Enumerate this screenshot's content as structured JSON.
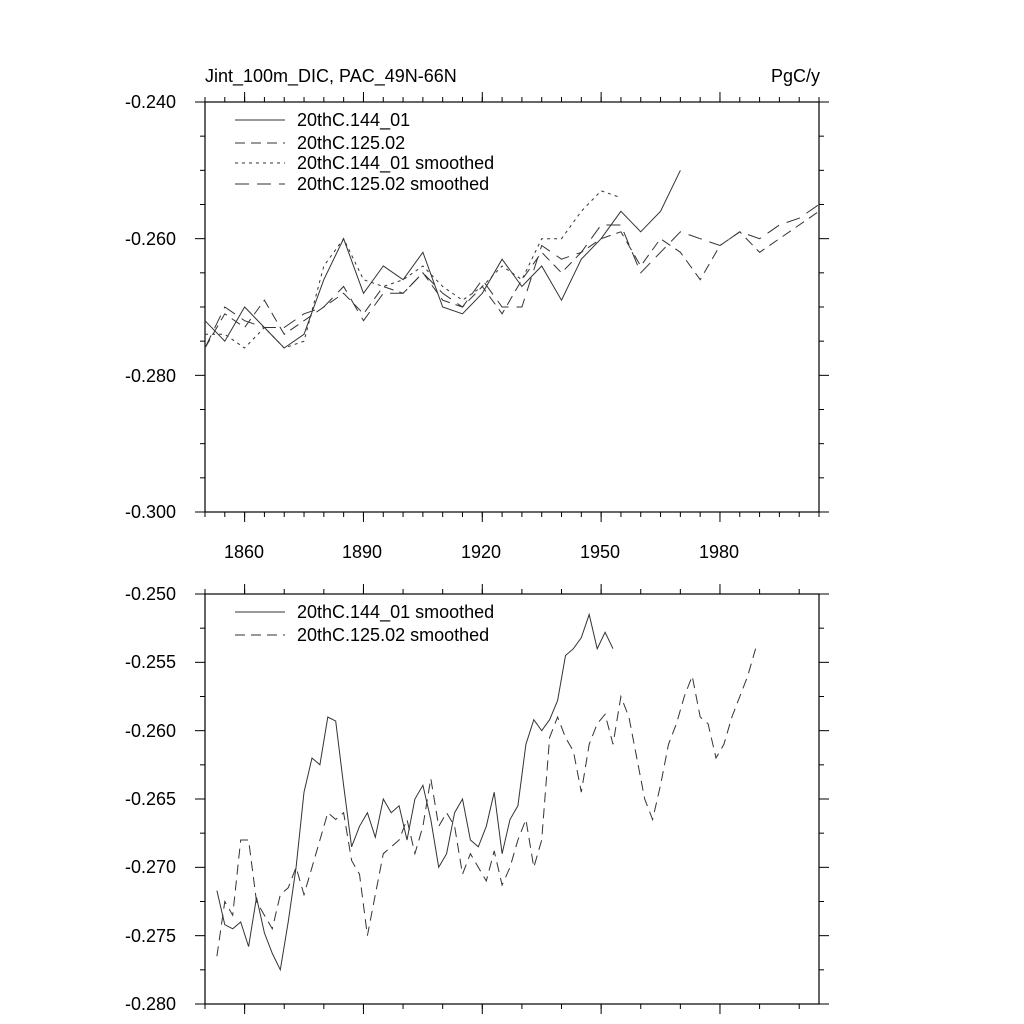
{
  "chart_data": [
    {
      "type": "line",
      "title": "Jint_100m_DIC, PAC_49N-66N",
      "units_label": "PgC/y",
      "ylim": [
        -0.3,
        -0.24
      ],
      "xlim": [
        1850,
        2005
      ],
      "yticks": [
        "-0.240",
        "-0.260",
        "-0.280",
        "-0.300"
      ],
      "xticks": [
        "1860",
        "1890",
        "1920",
        "1950",
        "1980"
      ],
      "series": [
        {
          "name": "20thC.144_01",
          "style": "solid",
          "color": "#333333",
          "x_start": 1850,
          "x_step": 5,
          "values": [
            -0.272,
            -0.275,
            -0.27,
            -0.273,
            -0.276,
            -0.274,
            -0.266,
            -0.26,
            -0.268,
            -0.264,
            -0.266,
            -0.262,
            -0.27,
            -0.271,
            -0.268,
            -0.263,
            -0.267,
            -0.264,
            -0.269,
            -0.263,
            -0.26,
            -0.256,
            -0.259,
            -0.256,
            -0.25
          ]
        },
        {
          "name": "20thC.125.02",
          "style": "dashed",
          "color": "#333333",
          "x_start": 1850,
          "x_step": 5,
          "values": [
            -0.276,
            -0.271,
            -0.273,
            -0.269,
            -0.274,
            -0.272,
            -0.27,
            -0.268,
            -0.271,
            -0.267,
            -0.268,
            -0.265,
            -0.269,
            -0.27,
            -0.267,
            -0.271,
            -0.266,
            -0.262,
            -0.265,
            -0.262,
            -0.26,
            -0.259,
            -0.264,
            -0.26,
            -0.262,
            -0.266,
            -0.261,
            -0.259,
            -0.262,
            -0.26,
            -0.258,
            -0.256
          ]
        },
        {
          "name": "20thC.144_01 smoothed",
          "style": "dotted",
          "color": "#333333",
          "x_start": 1850,
          "x_step": 5,
          "values": [
            -0.274,
            -0.274,
            -0.276,
            -0.273,
            -0.276,
            -0.275,
            -0.264,
            -0.26,
            -0.266,
            -0.267,
            -0.266,
            -0.264,
            -0.267,
            -0.269,
            -0.267,
            -0.264,
            -0.266,
            -0.26,
            -0.26,
            -0.256,
            -0.253,
            -0.254
          ]
        },
        {
          "name": "20thC.125.02 smoothed",
          "style": "longdash",
          "color": "#333333",
          "x_start": 1850,
          "x_step": 5,
          "values": [
            -0.276,
            -0.27,
            -0.272,
            -0.273,
            -0.273,
            -0.271,
            -0.27,
            -0.267,
            -0.272,
            -0.268,
            -0.268,
            -0.265,
            -0.268,
            -0.27,
            -0.266,
            -0.27,
            -0.27,
            -0.261,
            -0.263,
            -0.262,
            -0.258,
            -0.258,
            -0.265,
            -0.262,
            -0.259,
            -0.26,
            -0.261,
            -0.259,
            -0.26,
            -0.258,
            -0.257,
            -0.255
          ]
        }
      ]
    },
    {
      "type": "line",
      "ylim": [
        -0.28,
        -0.25
      ],
      "xlim": [
        1850,
        2005
      ],
      "yticks": [
        "-0.250",
        "-0.255",
        "-0.260",
        "-0.265",
        "-0.270",
        "-0.275",
        "-0.280"
      ],
      "xticks": [],
      "series": [
        {
          "name": "20thC.144_01 smoothed",
          "style": "solid",
          "color": "#333333",
          "x_start": 1853,
          "x_step": 2,
          "values": [
            -0.2717,
            -0.2742,
            -0.2745,
            -0.274,
            -0.2758,
            -0.2722,
            -0.2748,
            -0.2763,
            -0.2775,
            -0.274,
            -0.27,
            -0.2645,
            -0.262,
            -0.2625,
            -0.259,
            -0.2593,
            -0.264,
            -0.2685,
            -0.267,
            -0.266,
            -0.2678,
            -0.265,
            -0.266,
            -0.2655,
            -0.268,
            -0.265,
            -0.264,
            -0.2665,
            -0.27,
            -0.269,
            -0.266,
            -0.265,
            -0.268,
            -0.2685,
            -0.267,
            -0.2645,
            -0.269,
            -0.2665,
            -0.2655,
            -0.261,
            -0.2592,
            -0.26,
            -0.2592,
            -0.2578,
            -0.2545,
            -0.254,
            -0.2532,
            -0.2515,
            -0.254,
            -0.2528,
            -0.254
          ]
        },
        {
          "name": "20thC.125.02 smoothed",
          "style": "dashed",
          "color": "#333333",
          "x_start": 1853,
          "x_step": 2,
          "values": [
            -0.2765,
            -0.2725,
            -0.2735,
            -0.268,
            -0.268,
            -0.2725,
            -0.2735,
            -0.2745,
            -0.272,
            -0.2715,
            -0.27,
            -0.272,
            -0.27,
            -0.268,
            -0.266,
            -0.2665,
            -0.266,
            -0.2695,
            -0.2705,
            -0.275,
            -0.272,
            -0.269,
            -0.2685,
            -0.268,
            -0.2665,
            -0.269,
            -0.267,
            -0.2635,
            -0.267,
            -0.266,
            -0.267,
            -0.2705,
            -0.269,
            -0.27,
            -0.271,
            -0.2688,
            -0.2713,
            -0.27,
            -0.268,
            -0.2665,
            -0.27,
            -0.268,
            -0.2605,
            -0.259,
            -0.2605,
            -0.2615,
            -0.2645,
            -0.261,
            -0.2595,
            -0.2588,
            -0.261,
            -0.2575,
            -0.259,
            -0.262,
            -0.265,
            -0.2665,
            -0.264,
            -0.261,
            -0.2595,
            -0.2575,
            -0.256,
            -0.259,
            -0.2595,
            -0.262,
            -0.261,
            -0.259,
            -0.2575,
            -0.256,
            -0.254
          ]
        }
      ]
    }
  ]
}
